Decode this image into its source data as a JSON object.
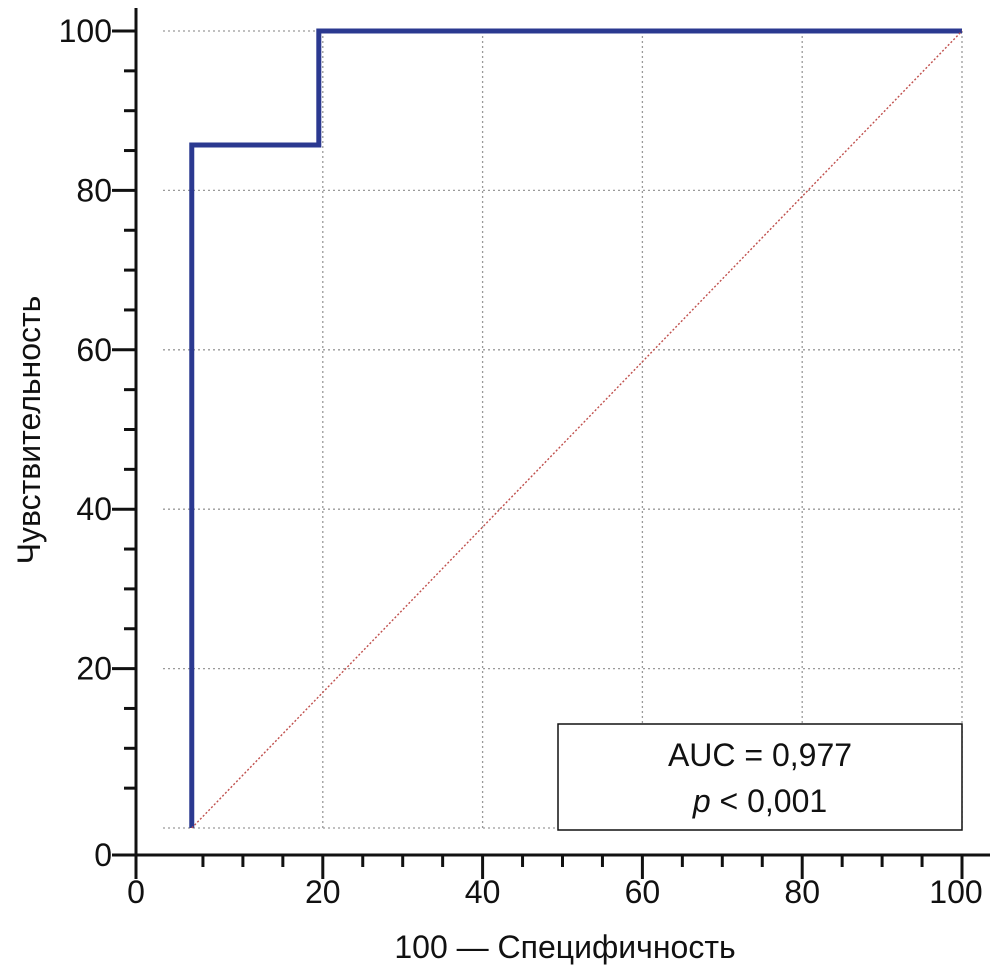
{
  "chart_data": {
    "type": "line",
    "xlabel": "100 — Специфичность",
    "ylabel": "Чувствительность",
    "xlim": [
      0,
      100
    ],
    "ylim": [
      0,
      100
    ],
    "x_ticks": [
      0,
      20,
      40,
      60,
      80,
      100
    ],
    "y_ticks": [
      0,
      20,
      40,
      60,
      80,
      100
    ],
    "x_tick_labels": [
      "0",
      "20",
      "40",
      "60",
      "80",
      "100"
    ],
    "y_tick_labels": [
      "0",
      "20",
      "40",
      "60",
      "80",
      "100"
    ],
    "grid": true,
    "series": [
      {
        "color": "#2b3990",
        "x": [
          3.6,
          3.6,
          19.5,
          19.5,
          100
        ],
        "y": [
          0,
          85.7,
          85.7,
          100,
          100
        ],
        "step": true
      },
      {
        "color": "#c0504d",
        "style": "dotted",
        "x": [
          3.6,
          100
        ],
        "y": [
          0,
          100
        ]
      }
    ],
    "annotation": {
      "auc_text": "AUC = 0,977",
      "p_symbol": "p",
      "p_rest": " < 0,001",
      "position": "bottom-right"
    }
  }
}
